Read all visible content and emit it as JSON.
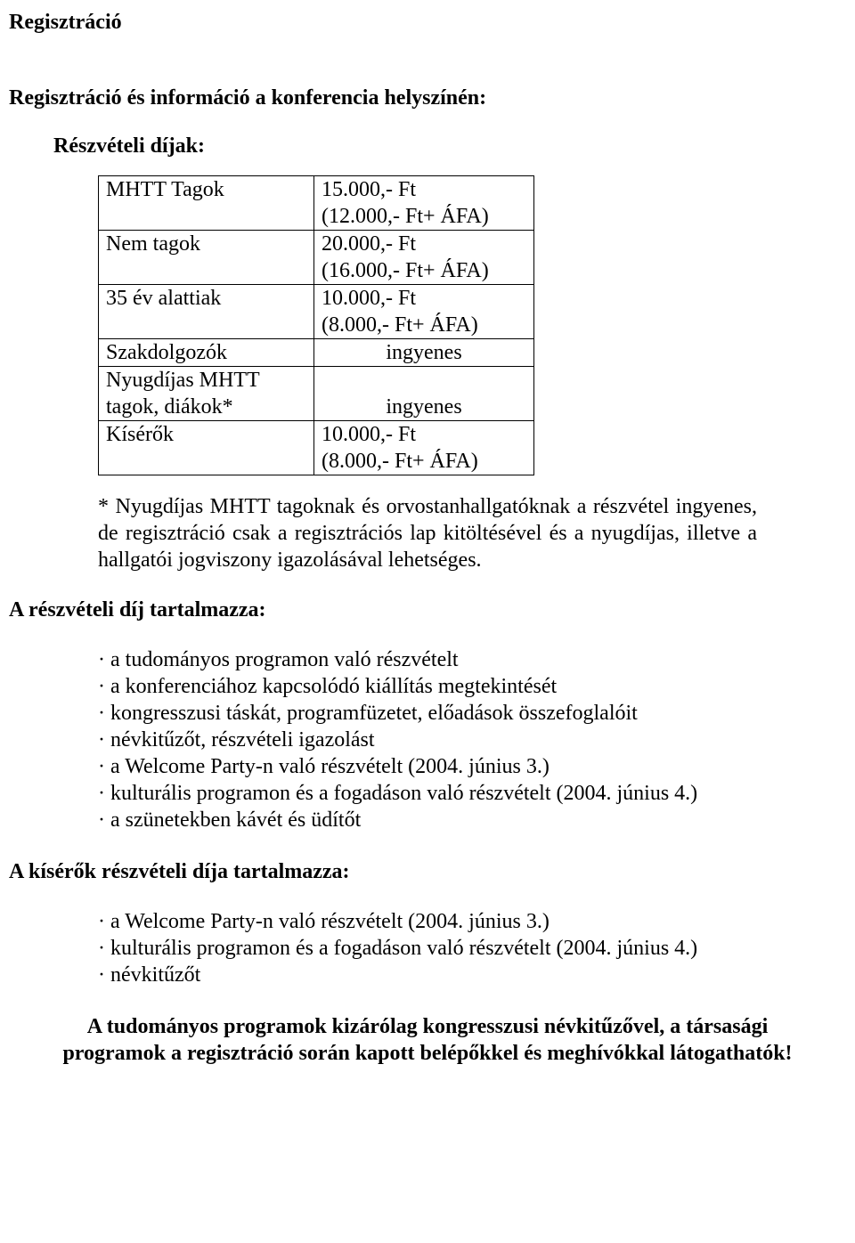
{
  "title": "Regisztráció",
  "intro_heading": "Regisztráció és információ a konferencia helyszínén:",
  "fees_heading": "Részvételi díjak:",
  "fees": {
    "rows": [
      {
        "label": "MHTT Tagok",
        "price_line1": "15.000,- Ft",
        "price_line2": "(12.000,- Ft+ ÁFA)"
      },
      {
        "label": "Nem tagok",
        "price_line1": "20.000,- Ft",
        "price_line2": "(16.000,- Ft+ ÁFA)"
      },
      {
        "label": "35 év alattiak",
        "price_line1": "10.000,- Ft",
        "price_line2": "(8.000,- Ft+ ÁFA)"
      },
      {
        "label": "Szakdolgozók",
        "price_line1": "ingyenes",
        "price_line2": ""
      },
      {
        "label": "Nyugdíjas MHTT tagok, diákok*",
        "price_line1": "ingyenes",
        "price_line2": ""
      },
      {
        "label": "Kísérők",
        "price_line1": "10.000,- Ft",
        "price_line2": "(8.000,- Ft+ ÁFA)"
      }
    ]
  },
  "footnote": "* Nyugdíjas MHTT tagoknak és orvostanhallgatóknak a részvétel ingyenes, de regisztráció csak a regisztrációs lap kitöltésével és a nyugdíjas, illetve a hallgatói jogviszony igazolásával lehetséges.",
  "includes_heading": "A részvételi díj tartalmazza:",
  "includes": [
    "a tudományos programon való részvételt",
    "a konferenciához kapcsolódó kiállítás megtekintését",
    "kongresszusi táskát, programfüzetet, előadások összefoglalóit",
    "névkitűzőt, részvételi igazolást",
    "a Welcome Party-n való részvételt (2004. június 3.)",
    "kulturális programon és a fogadáson való részvételt (2004. június 4.)",
    "a szünetekben kávét és üdítőt"
  ],
  "companion_heading": "A kísérők részvételi díja tartalmazza:",
  "companion_includes": [
    "a Welcome Party-n való részvételt (2004. június 3.)",
    "kulturális programon és a fogadáson való részvételt (2004. június 4.)",
    "névkitűzőt"
  ],
  "closing": "A tudományos programok kizárólag kongresszusi névkitűzővel, a társasági programok a regisztráció során kapott belépőkkel és meghívókkal látogathatók!"
}
